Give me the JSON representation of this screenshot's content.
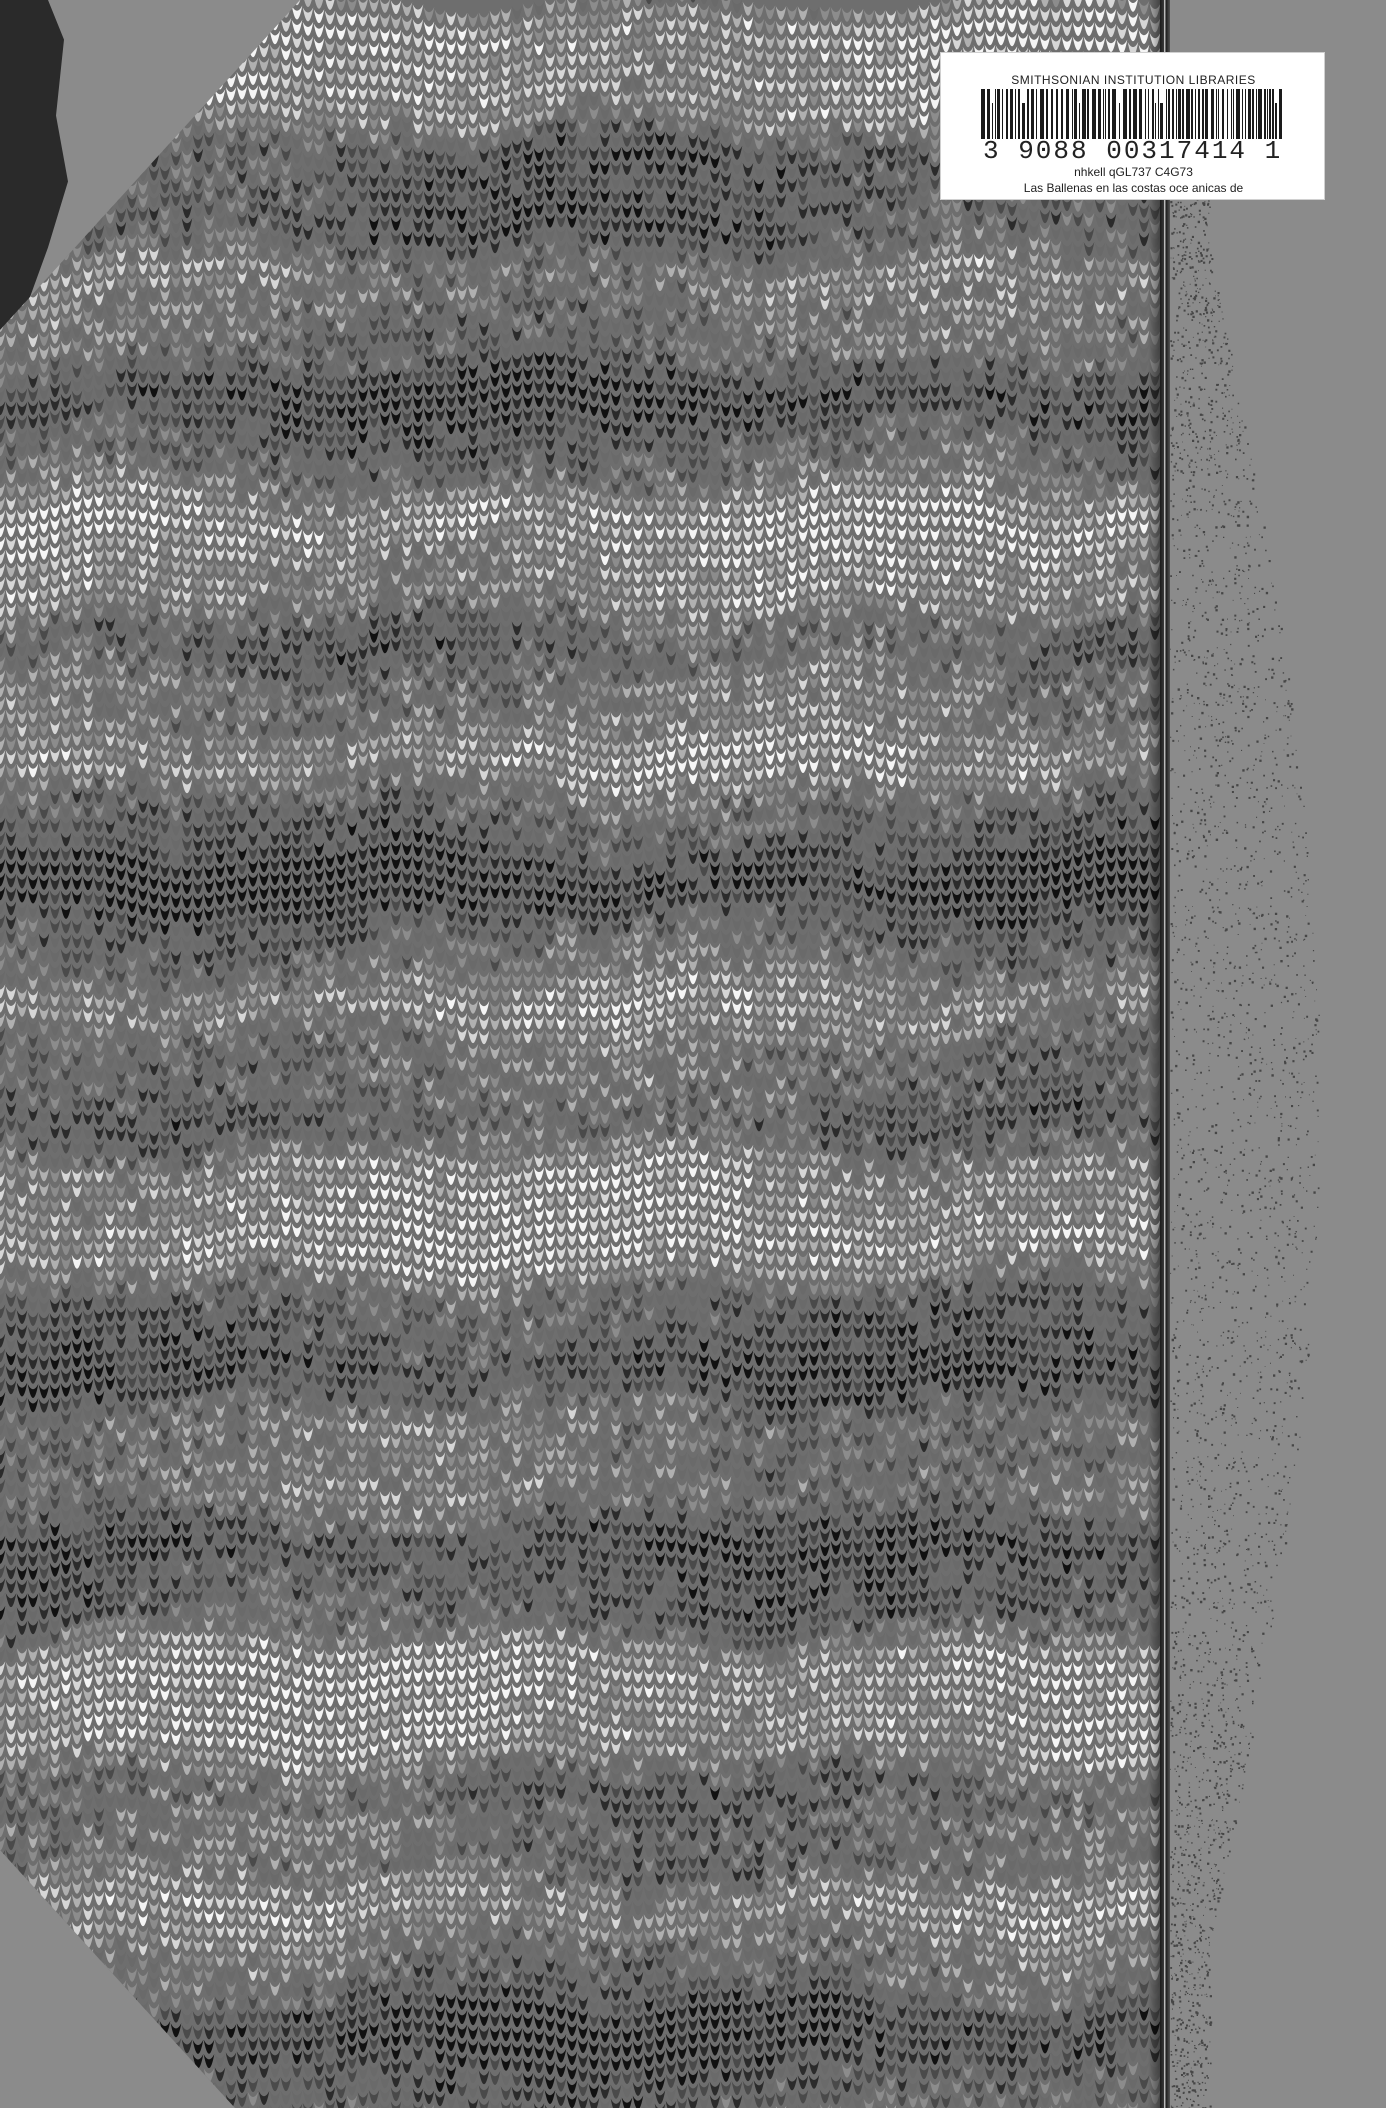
{
  "label": {
    "institution": "SMITHSONIAN INSTITUTION LIBRARIES",
    "barcode_number": "3 9088 00317414 1",
    "call_number": "nhkell qGL737 C4G73",
    "title": "Las Ballenas en las costas oce anicas de"
  },
  "colors": {
    "background": "#8b8b8b",
    "marble_dark": "#1a1a1a",
    "marble_light": "#f2f2f2",
    "label_bg": "#ffffff"
  }
}
